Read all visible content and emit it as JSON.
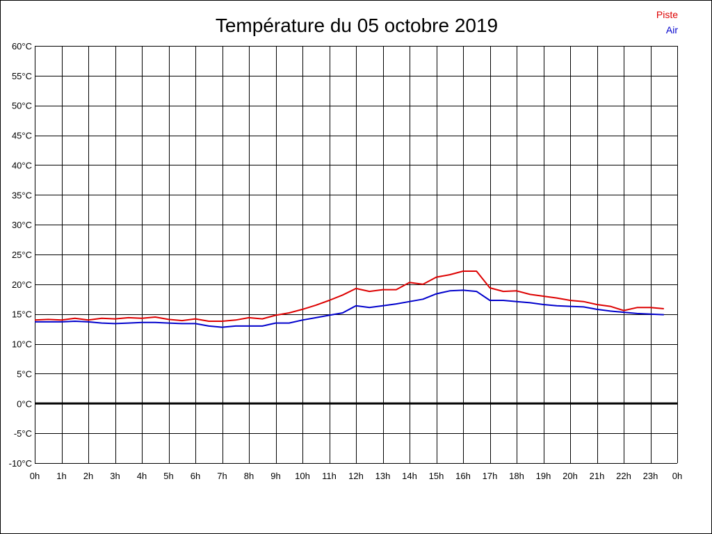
{
  "chart_data": {
    "type": "line",
    "title": "Température du 05 octobre 2019",
    "xlabel": "",
    "ylabel": "",
    "x_tick_labels": [
      "0h",
      "1h",
      "2h",
      "3h",
      "4h",
      "5h",
      "6h",
      "7h",
      "8h",
      "9h",
      "10h",
      "11h",
      "12h",
      "13h",
      "14h",
      "15h",
      "16h",
      "17h",
      "18h",
      "19h",
      "20h",
      "21h",
      "22h",
      "23h",
      "0h"
    ],
    "y_tick_labels": [
      "60°C",
      "55°C",
      "50°C",
      "45°C",
      "40°C",
      "35°C",
      "30°C",
      "25°C",
      "20°C",
      "15°C",
      "10°C",
      "5°C",
      "0°C",
      "-5°C",
      "-10°C"
    ],
    "y_ticks": [
      60,
      55,
      50,
      45,
      40,
      35,
      30,
      25,
      20,
      15,
      10,
      5,
      0,
      -5,
      -10
    ],
    "xlim": [
      0,
      24
    ],
    "ylim": [
      -10,
      60
    ],
    "grid": true,
    "legend_position": "top-right",
    "zero_line": true,
    "x": [
      0,
      0.5,
      1,
      1.5,
      2,
      2.5,
      3,
      3.5,
      4,
      4.5,
      5,
      5.5,
      6,
      6.5,
      7,
      7.5,
      8,
      8.5,
      9,
      9.5,
      10,
      10.5,
      11,
      11.5,
      12,
      12.5,
      13,
      13.5,
      14,
      14.5,
      15,
      15.5,
      16,
      16.5,
      17,
      17.5,
      18,
      18.5,
      19,
      19.5,
      20,
      20.5,
      21,
      21.5,
      22,
      22.5,
      23,
      23.5
    ],
    "series": [
      {
        "name": "Piste",
        "color": "#dd0000",
        "values": [
          14.0,
          14.1,
          14.0,
          14.3,
          14.0,
          14.3,
          14.2,
          14.4,
          14.3,
          14.5,
          14.1,
          13.9,
          14.2,
          13.8,
          13.8,
          14.0,
          14.4,
          14.2,
          14.8,
          15.2,
          15.8,
          16.5,
          17.3,
          18.2,
          19.3,
          18.8,
          19.1,
          19.1,
          20.3,
          20.0,
          21.2,
          21.6,
          22.2,
          22.2,
          19.4,
          18.8,
          18.9,
          18.3,
          18.0,
          17.7,
          17.3,
          17.1,
          16.6,
          16.3,
          15.6,
          16.1,
          16.1,
          15.9
        ]
      },
      {
        "name": "Air",
        "color": "#0000cc",
        "values": [
          13.7,
          13.7,
          13.7,
          13.8,
          13.7,
          13.5,
          13.4,
          13.5,
          13.6,
          13.6,
          13.5,
          13.4,
          13.4,
          13.0,
          12.8,
          13.0,
          13.0,
          13.0,
          13.5,
          13.5,
          14.0,
          14.4,
          14.8,
          15.2,
          16.4,
          16.1,
          16.4,
          16.7,
          17.1,
          17.5,
          18.4,
          18.9,
          19.0,
          18.8,
          17.3,
          17.3,
          17.1,
          16.9,
          16.6,
          16.4,
          16.3,
          16.2,
          15.8,
          15.5,
          15.3,
          15.1,
          15.0,
          14.9
        ]
      }
    ]
  }
}
